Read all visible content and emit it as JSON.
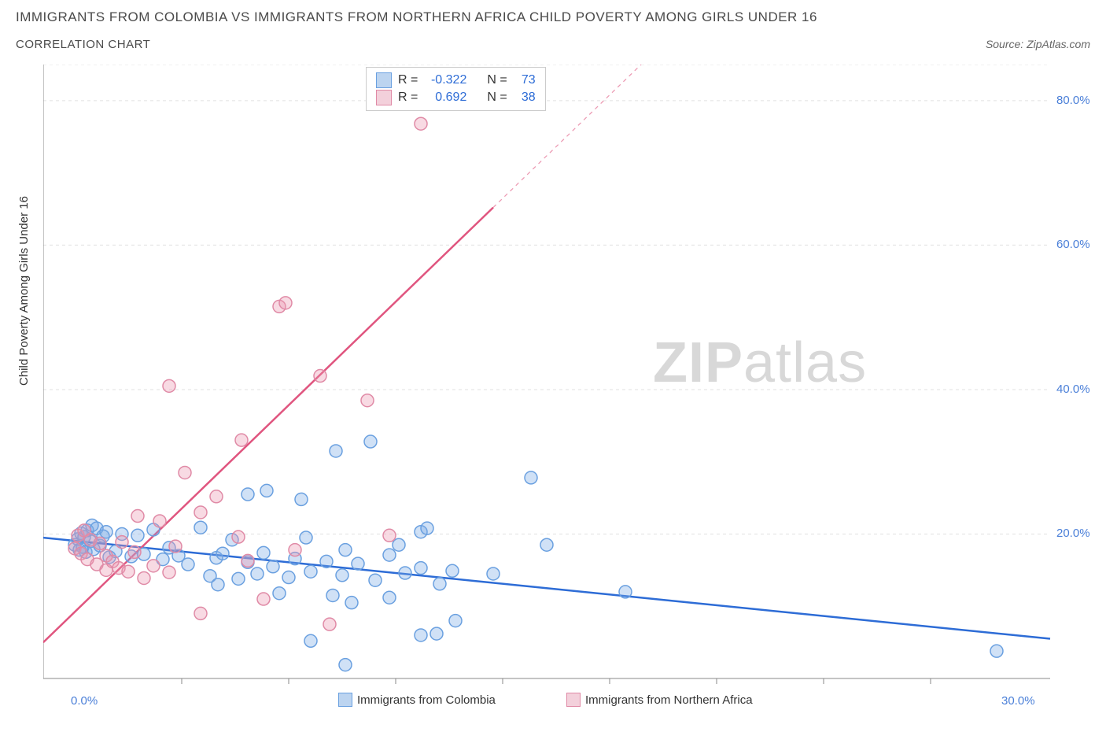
{
  "title": "IMMIGRANTS FROM COLOMBIA VS IMMIGRANTS FROM NORTHERN AFRICA CHILD POVERTY AMONG GIRLS UNDER 16",
  "subtitle": "CORRELATION CHART",
  "source": "Source: ZipAtlas.com",
  "ylabel": "Child Poverty Among Girls Under 16",
  "watermark_zip": "ZIP",
  "watermark_atlas": "atlas",
  "chart": {
    "type": "scatter",
    "background_color": "#ffffff",
    "grid_color": "#e0e0e0",
    "axis_color": "#888888",
    "tick_color": "#888888",
    "xlim": [
      -1,
      31
    ],
    "ylim": [
      0,
      85
    ],
    "yticks": [
      20,
      40,
      60,
      80
    ],
    "xticks_major": [
      0,
      30
    ],
    "xticks_minor": [
      3.4,
      6.8,
      10.2,
      13.6,
      17.0,
      20.4,
      23.8,
      27.2
    ],
    "ytick_labels": [
      "20.0%",
      "40.0%",
      "60.0%",
      "80.0%"
    ],
    "xtick_labels": [
      "0.0%",
      "30.0%"
    ],
    "marker_radius": 8,
    "marker_stroke_width": 1.5,
    "series": [
      {
        "name": "Immigrants from Colombia",
        "fill": "rgba(120,170,230,0.35)",
        "stroke": "#6aa0e0",
        "swatch_fill": "#bcd4f0",
        "swatch_stroke": "#6aa0e0",
        "R": "-0.322",
        "N": "73",
        "trend": {
          "x1": -1,
          "y1": 19.5,
          "x2": 31,
          "y2": 5.5,
          "solid_to_x": 31,
          "color": "#2d6cd6",
          "width": 2.5
        },
        "points": [
          [
            0.0,
            18.5
          ],
          [
            0.1,
            19.3
          ],
          [
            0.15,
            17.8
          ],
          [
            0.2,
            20.1
          ],
          [
            0.25,
            18.2
          ],
          [
            0.3,
            19.6
          ],
          [
            0.35,
            17.5
          ],
          [
            0.4,
            20.5
          ],
          [
            0.5,
            19.0
          ],
          [
            0.55,
            21.2
          ],
          [
            0.6,
            17.9
          ],
          [
            0.7,
            20.8
          ],
          [
            0.8,
            18.4
          ],
          [
            0.9,
            19.7
          ],
          [
            1.0,
            20.3
          ],
          [
            1.1,
            16.8
          ],
          [
            1.3,
            17.6
          ],
          [
            1.5,
            20.0
          ],
          [
            1.8,
            16.9
          ],
          [
            2.0,
            19.8
          ],
          [
            2.2,
            17.2
          ],
          [
            2.5,
            20.6
          ],
          [
            2.8,
            16.5
          ],
          [
            3.0,
            18.1
          ],
          [
            3.3,
            17.0
          ],
          [
            3.6,
            15.8
          ],
          [
            4.0,
            20.9
          ],
          [
            4.3,
            14.2
          ],
          [
            4.5,
            16.7
          ],
          [
            4.55,
            13.0
          ],
          [
            4.7,
            17.3
          ],
          [
            5.0,
            19.2
          ],
          [
            5.2,
            13.8
          ],
          [
            5.5,
            16.1
          ],
          [
            5.5,
            25.5
          ],
          [
            5.8,
            14.5
          ],
          [
            6.0,
            17.4
          ],
          [
            6.1,
            26.0
          ],
          [
            6.3,
            15.5
          ],
          [
            6.5,
            11.8
          ],
          [
            6.8,
            14.0
          ],
          [
            7.0,
            16.6
          ],
          [
            7.2,
            24.8
          ],
          [
            7.35,
            19.5
          ],
          [
            7.5,
            14.8
          ],
          [
            7.5,
            5.2
          ],
          [
            8.0,
            16.2
          ],
          [
            8.2,
            11.5
          ],
          [
            8.3,
            31.5
          ],
          [
            8.5,
            14.3
          ],
          [
            8.6,
            17.8
          ],
          [
            8.8,
            10.5
          ],
          [
            9.0,
            15.9
          ],
          [
            9.4,
            32.8
          ],
          [
            9.55,
            13.6
          ],
          [
            10.0,
            11.2
          ],
          [
            10.0,
            17.1
          ],
          [
            10.3,
            18.5
          ],
          [
            10.5,
            14.6
          ],
          [
            11.0,
            6.0
          ],
          [
            11.0,
            20.3
          ],
          [
            11.0,
            15.3
          ],
          [
            11.2,
            20.8
          ],
          [
            11.5,
            6.2
          ],
          [
            11.6,
            13.1
          ],
          [
            12.0,
            14.9
          ],
          [
            12.1,
            8.0
          ],
          [
            13.3,
            14.5
          ],
          [
            14.5,
            27.8
          ],
          [
            15.0,
            18.5
          ],
          [
            17.5,
            12.0
          ],
          [
            29.3,
            3.8
          ],
          [
            8.6,
            1.9
          ]
        ]
      },
      {
        "name": "Immigrants from Northern Africa",
        "fill": "rgba(235,150,175,0.35)",
        "stroke": "#e08aa6",
        "swatch_fill": "#f3d0db",
        "swatch_stroke": "#e08aa6",
        "R": "0.692",
        "N": "38",
        "trend": {
          "x1": -1,
          "y1": 5.0,
          "x2": 18.0,
          "y2": 85.0,
          "solid_to_x": 13.3,
          "color": "#e0557f",
          "width": 2.5
        },
        "points": [
          [
            0.0,
            18.0
          ],
          [
            0.1,
            19.8
          ],
          [
            0.2,
            17.3
          ],
          [
            0.3,
            20.5
          ],
          [
            0.4,
            16.5
          ],
          [
            0.5,
            19.2
          ],
          [
            0.7,
            15.8
          ],
          [
            0.8,
            18.7
          ],
          [
            1.0,
            17.0
          ],
          [
            1.0,
            15.0
          ],
          [
            1.2,
            16.2
          ],
          [
            1.4,
            15.3
          ],
          [
            1.5,
            18.9
          ],
          [
            1.7,
            14.8
          ],
          [
            1.9,
            17.5
          ],
          [
            2.0,
            22.5
          ],
          [
            2.2,
            13.9
          ],
          [
            2.5,
            15.6
          ],
          [
            2.7,
            21.8
          ],
          [
            3.0,
            14.7
          ],
          [
            3.0,
            40.5
          ],
          [
            3.2,
            18.3
          ],
          [
            3.5,
            28.5
          ],
          [
            4.0,
            23.0
          ],
          [
            4.0,
            9.0
          ],
          [
            4.5,
            25.2
          ],
          [
            5.2,
            19.6
          ],
          [
            5.3,
            33.0
          ],
          [
            5.5,
            16.3
          ],
          [
            6.0,
            11.0
          ],
          [
            6.5,
            51.5
          ],
          [
            6.7,
            52.0
          ],
          [
            7.0,
            17.8
          ],
          [
            7.8,
            41.9
          ],
          [
            8.1,
            7.5
          ],
          [
            9.3,
            38.5
          ],
          [
            10.0,
            19.8
          ],
          [
            11.0,
            76.8
          ]
        ]
      }
    ],
    "legend_bottom": [
      {
        "label": "Immigrants from Colombia"
      },
      {
        "label": "Immigrants from Northern Africa"
      }
    ],
    "stat_labels": {
      "R": "R =",
      "N": "N ="
    }
  }
}
